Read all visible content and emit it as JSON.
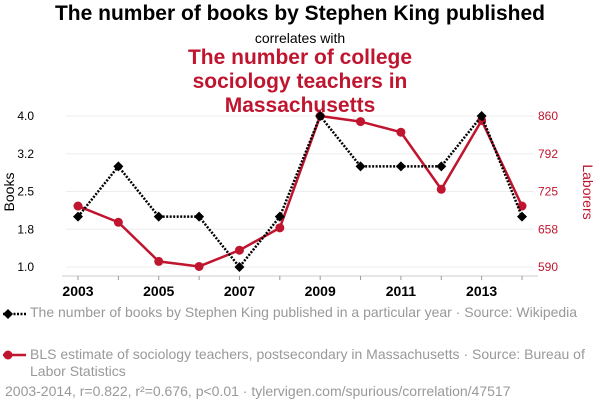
{
  "chart_data": {
    "type": "line",
    "title": "The number of books by Stephen King published",
    "subtitle": "correlates with",
    "title2": "The number of college sociology teachers in Massachusetts",
    "x": [
      2003,
      2004,
      2005,
      2006,
      2007,
      2008,
      2009,
      2010,
      2011,
      2012,
      2013,
      2014
    ],
    "xticks": [
      "2003",
      "2005",
      "2007",
      "2009",
      "2011",
      "2013"
    ],
    "ylabel": "Books",
    "y2label": "Laborers",
    "ylim": [
      1,
      4
    ],
    "y2lim": [
      590,
      860
    ],
    "yticks": [
      "1.0",
      "1.8",
      "2.5",
      "3.2",
      "4.0"
    ],
    "y2ticks": [
      "590",
      "658",
      "725",
      "792",
      "860"
    ],
    "series": [
      {
        "name": "The number of books by Stephen King published in a particular year · Source: Wikipedia",
        "axis": "left",
        "color": "#000000",
        "values": [
          2,
          3,
          2,
          2,
          1,
          2,
          4,
          3,
          3,
          3,
          4,
          2
        ]
      },
      {
        "name": "BLS estimate of sociology teachers, postsecondary in Massachusetts · Source: Bureau of Labor Statistics",
        "axis": "right",
        "color": "#c0152f",
        "values": [
          699,
          670,
          600,
          591,
          620,
          660,
          860,
          850,
          831,
          729,
          852,
          699
        ]
      }
    ],
    "footer": "2003-2014, r=0.822, r²=0.676, p<0.01 · tylervigen.com/spurious/correlation/47517",
    "grid": true
  }
}
